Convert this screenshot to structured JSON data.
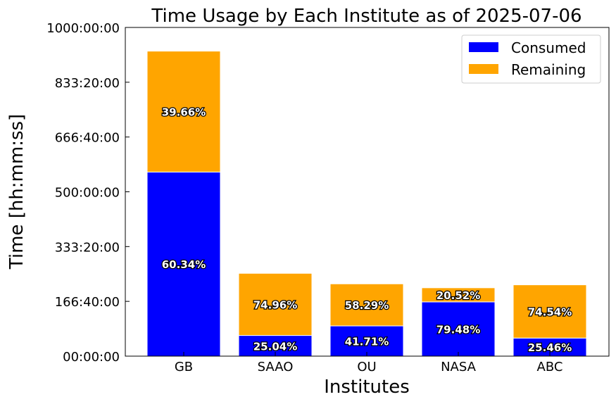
{
  "chart_data": {
    "type": "bar",
    "stacked": true,
    "title": "Time Usage by Each Institute as of 2025-07-06",
    "xlabel": "Institutes",
    "ylabel": "Time [hh:mm:ss]",
    "categories": [
      "GB",
      "SAAO",
      "OU",
      "NASA",
      "ABC"
    ],
    "series": [
      {
        "name": "Consumed",
        "color": "#0000ff",
        "values_hours": [
          560,
          63,
          92,
          165,
          55
        ],
        "percent_labels": [
          "60.34%",
          "25.04%",
          "41.71%",
          "79.48%",
          "25.46%"
        ]
      },
      {
        "name": "Remaining",
        "color": "#ffa500",
        "values_hours": [
          368,
          189,
          128,
          43,
          162
        ],
        "percent_labels": [
          "39.66%",
          "74.96%",
          "58.29%",
          "20.52%",
          "74.54%"
        ]
      }
    ],
    "yticks_hours": [
      0,
      166.6667,
      333.3333,
      500,
      666.6667,
      833.3333,
      1000
    ],
    "ytick_labels": [
      "00:00:00",
      "166:40:00",
      "333:20:00",
      "500:00:00",
      "666:40:00",
      "833:20:00",
      "1000:00:00"
    ],
    "ylim_hours": [
      0,
      1000
    ],
    "grid": false,
    "legend_position": "top-right"
  }
}
